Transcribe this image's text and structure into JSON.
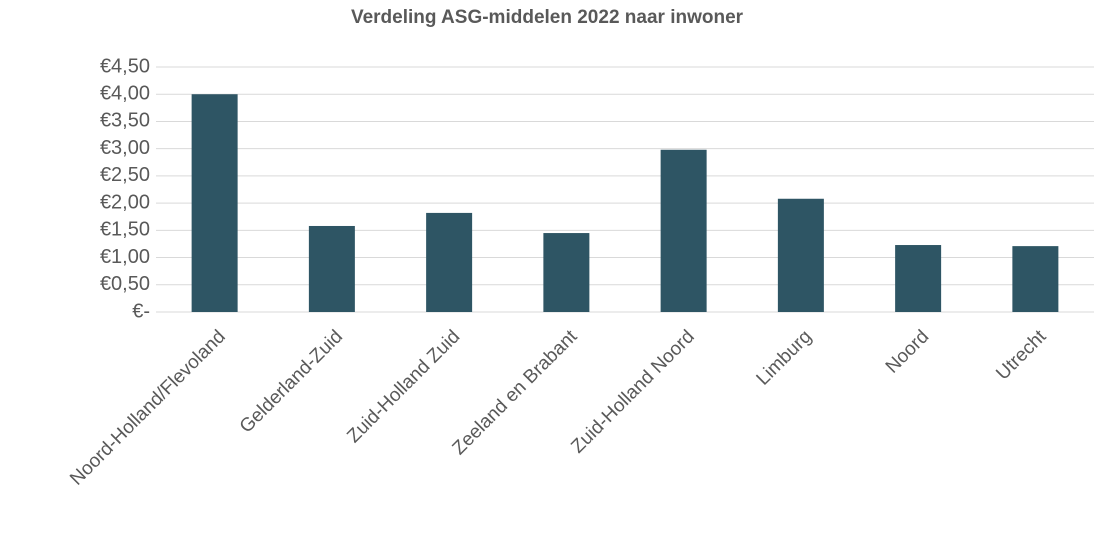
{
  "chart_data": {
    "type": "bar",
    "title": "Verdeling ASG-middelen 2022 naar inwoner",
    "categories": [
      "Noord-Holland/Flevoland",
      "Gelderland-Zuid",
      "Zuid-Holland Zuid",
      "Zeeland en Brabant",
      "Zuid-Holland Noord",
      "Limburg",
      "Noord",
      "Utrecht"
    ],
    "values": [
      4.0,
      1.58,
      1.82,
      1.45,
      2.98,
      2.08,
      1.23,
      1.21
    ],
    "color": "#2e5564",
    "ylim": [
      0,
      4.5
    ],
    "yticks": [
      {
        "value": 0,
        "label": "€-"
      },
      {
        "value": 0.5,
        "label": "€0,50"
      },
      {
        "value": 1,
        "label": "€1,00"
      },
      {
        "value": 1.5,
        "label": "€1,50"
      },
      {
        "value": 2,
        "label": "€2,00"
      },
      {
        "value": 2.5,
        "label": "€2,50"
      },
      {
        "value": 3,
        "label": "€3,00"
      },
      {
        "value": 3.5,
        "label": "€3,50"
      },
      {
        "value": 4,
        "label": "€4,00"
      },
      {
        "value": 4.5,
        "label": "€4,50"
      }
    ],
    "grid": true
  }
}
